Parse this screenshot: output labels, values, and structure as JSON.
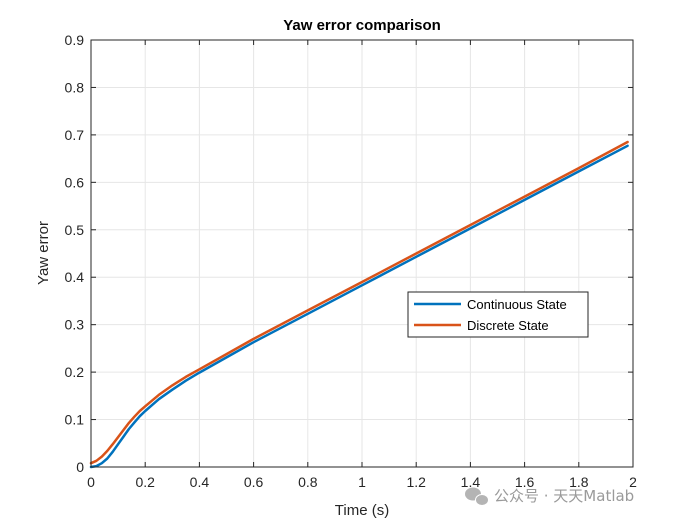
{
  "chart_data": {
    "type": "line",
    "title": "Yaw error comparison",
    "xlabel": "Time (s)",
    "ylabel": "Yaw error",
    "xlim": [
      0,
      2
    ],
    "ylim": [
      0,
      0.9
    ],
    "xticks": [
      "0",
      "0.2",
      "0.4",
      "0.6",
      "0.8",
      "1",
      "1.2",
      "1.4",
      "1.6",
      "1.8",
      "2"
    ],
    "yticks": [
      "0",
      "0.1",
      "0.2",
      "0.3",
      "0.4",
      "0.5",
      "0.6",
      "0.7",
      "0.8",
      "0.9"
    ],
    "grid": true,
    "legend_position": "center-right",
    "series": [
      {
        "name": "Continuous State",
        "color": "#0072BD",
        "x": [
          0,
          0.02,
          0.04,
          0.06,
          0.08,
          0.1,
          0.12,
          0.14,
          0.16,
          0.18,
          0.2,
          0.25,
          0.3,
          0.35,
          0.4,
          0.5,
          0.6,
          0.8,
          1.0,
          1.2,
          1.4,
          1.6,
          1.8,
          1.98
        ],
        "y": [
          0,
          0.002,
          0.008,
          0.018,
          0.032,
          0.048,
          0.064,
          0.08,
          0.094,
          0.107,
          0.118,
          0.143,
          0.163,
          0.182,
          0.199,
          0.231,
          0.263,
          0.323,
          0.383,
          0.443,
          0.503,
          0.563,
          0.623,
          0.677
        ]
      },
      {
        "name": "Discrete State",
        "color": "#D95319",
        "x": [
          0,
          0.02,
          0.04,
          0.06,
          0.08,
          0.1,
          0.12,
          0.14,
          0.16,
          0.18,
          0.2,
          0.25,
          0.3,
          0.35,
          0.4,
          0.5,
          0.6,
          0.8,
          1.0,
          1.2,
          1.4,
          1.6,
          1.8,
          1.98
        ],
        "y": [
          0.008,
          0.013,
          0.022,
          0.034,
          0.048,
          0.063,
          0.078,
          0.093,
          0.106,
          0.118,
          0.128,
          0.152,
          0.172,
          0.19,
          0.206,
          0.238,
          0.27,
          0.33,
          0.39,
          0.45,
          0.51,
          0.57,
          0.63,
          0.685
        ]
      }
    ]
  },
  "watermark": "公众号 · 天天Matlab"
}
